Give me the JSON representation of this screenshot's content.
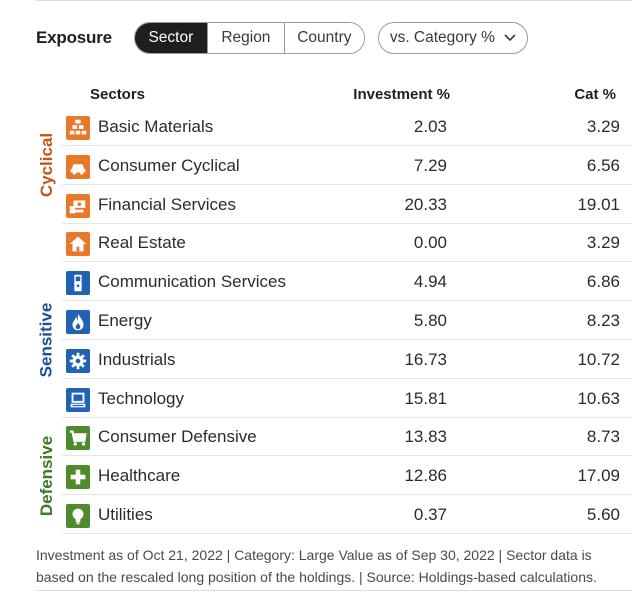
{
  "header": {
    "title": "Exposure",
    "tabs": [
      {
        "label": "Sector",
        "active": true
      },
      {
        "label": "Region",
        "active": false
      },
      {
        "label": "Country",
        "active": false
      }
    ],
    "dropdown_label": "vs. Category %"
  },
  "columns": {
    "sectors": "Sectors",
    "investment": "Investment %",
    "category": "Cat %"
  },
  "groups": [
    {
      "label": "Cyclical",
      "color": "#c1561b"
    },
    {
      "label": "Sensitive",
      "color": "#1f4f9c"
    },
    {
      "label": "Defensive",
      "color": "#3d7a2a"
    }
  ],
  "rows": [
    {
      "name": "Basic Materials",
      "investment": "2.03",
      "category": "3.29",
      "icon": "bricks-icon",
      "color": "#e8782a"
    },
    {
      "name": "Consumer Cyclical",
      "investment": "7.29",
      "category": "6.56",
      "icon": "car-icon",
      "color": "#e8782a"
    },
    {
      "name": "Financial Services",
      "investment": "20.33",
      "category": "19.01",
      "icon": "money-icon",
      "color": "#e8782a"
    },
    {
      "name": "Real Estate",
      "investment": "0.00",
      "category": "3.29",
      "icon": "house-icon",
      "color": "#e8782a"
    },
    {
      "name": "Communication Services",
      "investment": "4.94",
      "category": "6.86",
      "icon": "phone-icon",
      "color": "#2162b4"
    },
    {
      "name": "Energy",
      "investment": "5.80",
      "category": "8.23",
      "icon": "flame-icon",
      "color": "#2162b4"
    },
    {
      "name": "Industrials",
      "investment": "16.73",
      "category": "10.72",
      "icon": "gear-icon",
      "color": "#2162b4"
    },
    {
      "name": "Technology",
      "investment": "15.81",
      "category": "10.63",
      "icon": "computer-icon",
      "color": "#2162b4"
    },
    {
      "name": "Consumer Defensive",
      "investment": "13.83",
      "category": "8.73",
      "icon": "cart-icon",
      "color": "#4d8b2c"
    },
    {
      "name": "Healthcare",
      "investment": "12.86",
      "category": "17.09",
      "icon": "cross-icon",
      "color": "#4d8b2c"
    },
    {
      "name": "Utilities",
      "investment": "0.37",
      "category": "5.60",
      "icon": "bulb-icon",
      "color": "#4d8b2c"
    }
  ],
  "footnote": "Investment as of Oct 21, 2022 | Category: Large Value as of Sep 30, 2022 | Sector data is based on the rescaled long position of the holdings. | Source: Holdings-based calculations."
}
